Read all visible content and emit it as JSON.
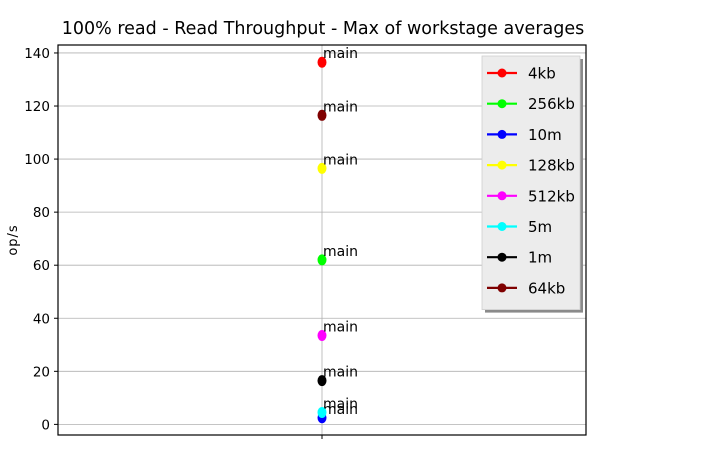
{
  "chart_data": {
    "type": "scatter",
    "title": "100% read - Read Throughput - Max of workstage averages",
    "xlabel": "",
    "ylabel": "op/s",
    "ylim": [
      -4,
      143
    ],
    "yticks": [
      0,
      20,
      40,
      60,
      80,
      100,
      120,
      140
    ],
    "grid": true,
    "legend_position": "top-right",
    "series": [
      {
        "name": "4kb",
        "color": "#ff0000",
        "x": [
          "main"
        ],
        "y": [
          136.5
        ]
      },
      {
        "name": "256kb",
        "color": "#00ff00",
        "x": [
          "main"
        ],
        "y": [
          62
        ]
      },
      {
        "name": "10m",
        "color": "#0000ff",
        "x": [
          "main"
        ],
        "y": [
          2.5
        ]
      },
      {
        "name": "128kb",
        "color": "#ffff00",
        "x": [
          "main"
        ],
        "y": [
          96.5
        ]
      },
      {
        "name": "512kb",
        "color": "#ff00ff",
        "x": [
          "main"
        ],
        "y": [
          33.5
        ]
      },
      {
        "name": "5m",
        "color": "#00ffff",
        "x": [
          "main"
        ],
        "y": [
          4.5
        ]
      },
      {
        "name": "1m",
        "color": "#000000",
        "x": [
          "main"
        ],
        "y": [
          16.5
        ]
      },
      {
        "name": "64kb",
        "color": "#7f0000",
        "x": [
          "main"
        ],
        "y": [
          116.5
        ]
      }
    ]
  }
}
